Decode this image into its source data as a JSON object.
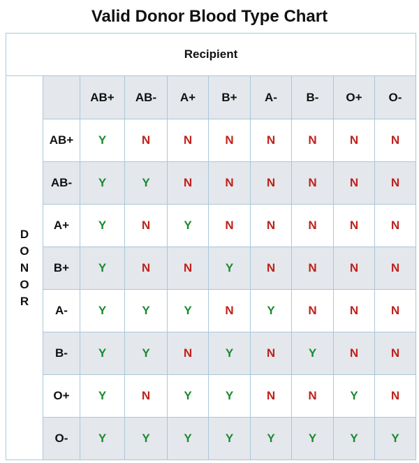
{
  "title": "Valid Donor Blood Type Chart",
  "recipient_label": "Recipient",
  "donor_label": "DONOR",
  "recipient_types": [
    "AB+",
    "AB-",
    "A+",
    "B+",
    "A-",
    "B-",
    "O+",
    "O-"
  ],
  "rows": [
    {
      "donor": "AB+",
      "values": [
        "Y",
        "N",
        "N",
        "N",
        "N",
        "N",
        "N",
        "N"
      ]
    },
    {
      "donor": "AB-",
      "values": [
        "Y",
        "Y",
        "N",
        "N",
        "N",
        "N",
        "N",
        "N"
      ]
    },
    {
      "donor": "A+",
      "values": [
        "Y",
        "N",
        "Y",
        "N",
        "N",
        "N",
        "N",
        "N"
      ]
    },
    {
      "donor": "B+",
      "values": [
        "Y",
        "N",
        "N",
        "Y",
        "N",
        "N",
        "N",
        "N"
      ]
    },
    {
      "donor": "A-",
      "values": [
        "Y",
        "Y",
        "Y",
        "N",
        "Y",
        "N",
        "N",
        "N"
      ]
    },
    {
      "donor": "B-",
      "values": [
        "Y",
        "Y",
        "N",
        "Y",
        "N",
        "Y",
        "N",
        "N"
      ]
    },
    {
      "donor": "O+",
      "values": [
        "Y",
        "N",
        "Y",
        "Y",
        "N",
        "N",
        "Y",
        "N"
      ]
    },
    {
      "donor": "O-",
      "values": [
        "Y",
        "Y",
        "Y",
        "Y",
        "Y",
        "Y",
        "Y",
        "Y"
      ]
    }
  ],
  "colors": {
    "yes": "#1a8a2e",
    "no": "#c0211b",
    "shade": "#e4e7ec",
    "border": "#a9c7d9"
  }
}
